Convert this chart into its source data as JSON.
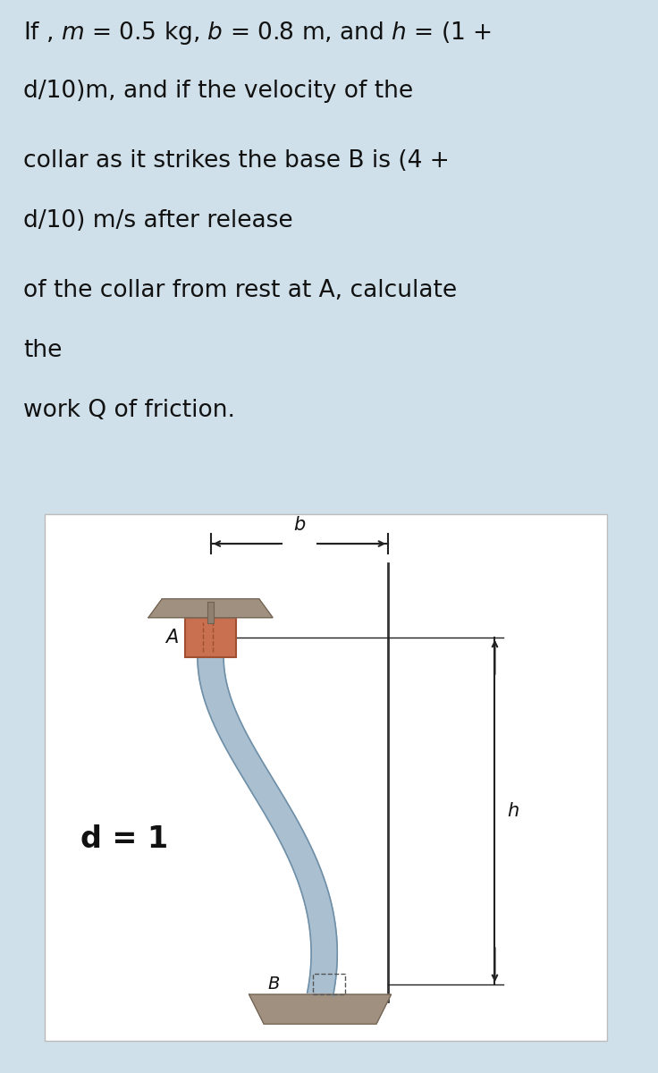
{
  "bg_color": "#cfe0ea",
  "diagram_bg": "#ffffff",
  "text_lines": [
    [
      "If , ",
      "m",
      " = 0.5 kg, ",
      "b",
      " = 0.8 m, and ",
      "h",
      " = (1 +"
    ],
    [
      "d/10)m, and if the velocity of the"
    ],
    [
      "collar as it strikes the base B is (4 +"
    ],
    [
      "d/10) m/s after release"
    ],
    [
      "of the collar from rest at A, calculate"
    ],
    [
      "the"
    ],
    [
      "work Q of friction."
    ]
  ],
  "d_label": "d = 1",
  "rod_color": "#aabfd0",
  "rod_edge": "#7090a8",
  "collar_color": "#c87050",
  "collar_edge": "#a05030",
  "plate_color": "#a09080",
  "base_color": "#a09080",
  "dim_color": "#222222",
  "label_color": "#111111",
  "font_size_text": 19,
  "font_size_label": 15,
  "font_size_d": 24
}
